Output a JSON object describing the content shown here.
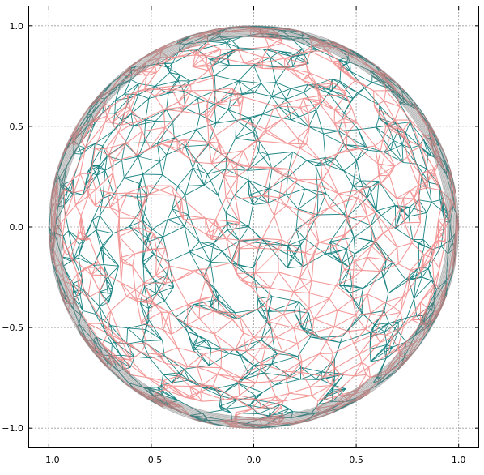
{
  "chart_data": {
    "type": "scatter",
    "title": "",
    "xlabel": "",
    "ylabel": "",
    "xlim": [
      -1.1,
      1.1
    ],
    "ylim": [
      -1.1,
      1.1
    ],
    "xticks": [
      -1.0,
      -0.5,
      0.0,
      0.5,
      1.0
    ],
    "yticks": [
      -1.0,
      -0.5,
      0.0,
      0.5,
      1.0
    ],
    "xtick_labels": [
      "−1.0",
      "−0.5",
      "0.0",
      "0.5",
      "1.0"
    ],
    "ytick_labels": [
      "−1.0",
      "−0.5",
      "0.0",
      "0.5",
      "1.0"
    ],
    "grid": true,
    "legend": "none",
    "shape": {
      "kind": "unit-sphere-triangulated-mesh",
      "center": [
        0.0,
        0.0
      ],
      "radius": 1.0
    },
    "series": [
      {
        "color": "#0e7c7b",
        "mark": "mesh-edges-back"
      },
      {
        "color": "#f08080",
        "mark": "mesh-edges-front"
      },
      {
        "color": "#808080",
        "mark": "outline-ring"
      }
    ]
  }
}
